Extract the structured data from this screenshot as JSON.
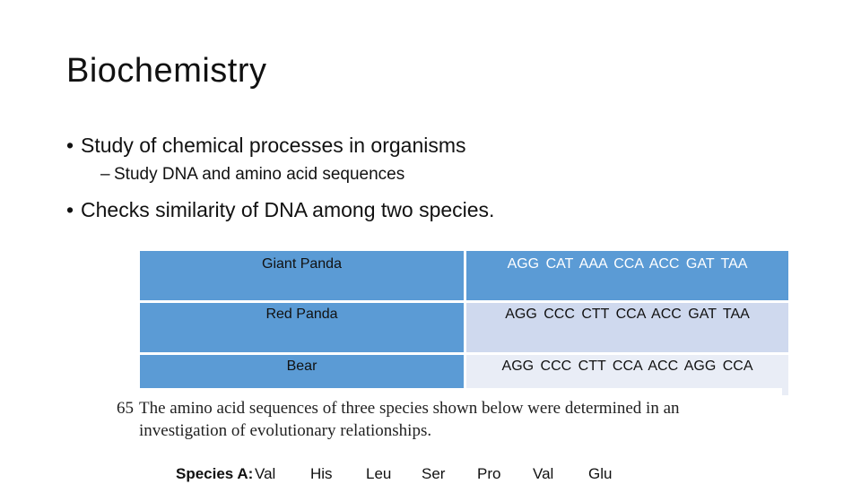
{
  "slide": {
    "title": "Biochemistry",
    "bullets": [
      "Study of chemical processes in organisms",
      "Study DNA and amino acid sequences",
      "Checks similarity of DNA among two species."
    ],
    "bullet_glyph": "•",
    "sub_glyph": "–"
  },
  "dna_table": {
    "rows": [
      {
        "species": "Giant Panda",
        "sequence": "AGG  CAT  AAA  CCA  ACC  GAT  TAA"
      },
      {
        "species": "Red Panda",
        "sequence": "AGG  CCC  CTT  CCA  ACC  GAT  TAA"
      },
      {
        "species": "Bear",
        "sequence": "AGG  CCC  CTT  CCA  ACC  AGG  CCA"
      }
    ]
  },
  "scanned_question": {
    "number": "65",
    "line1": "The amino acid sequences of three species shown below were determined in an",
    "line2": "investigation of evolutionary relationships.",
    "species_label": "Species A:",
    "amino_acids": [
      "Val",
      "His",
      "Leu",
      "Ser",
      "Pro",
      "Val",
      "Glu"
    ]
  }
}
